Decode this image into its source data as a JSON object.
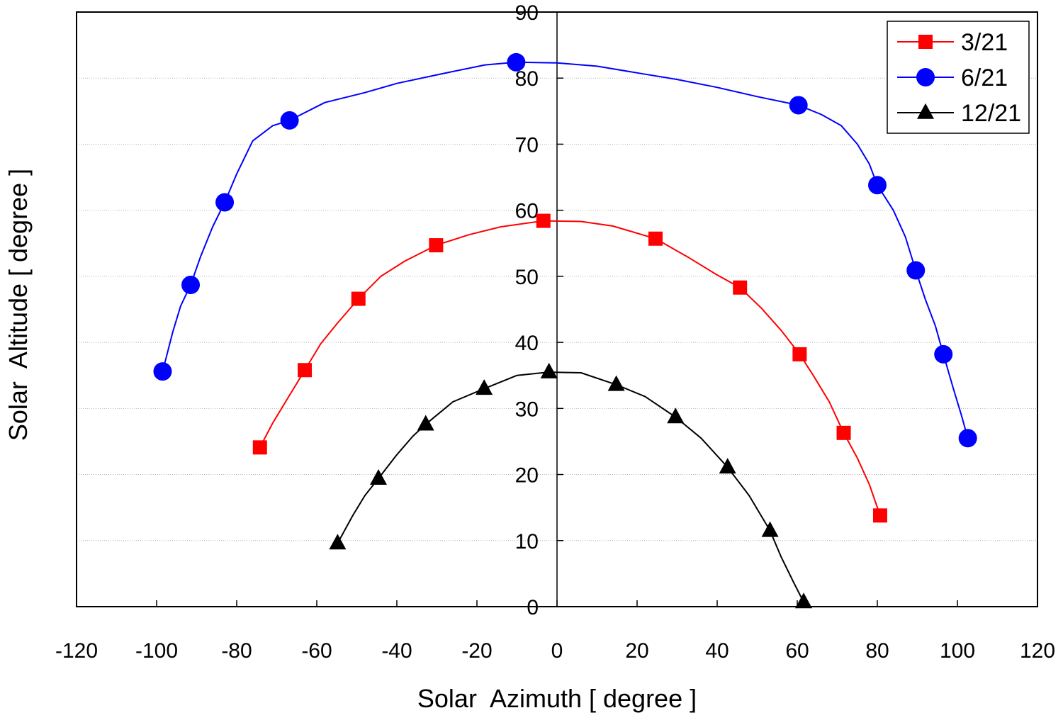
{
  "chart_data": {
    "type": "line",
    "xlabel": "Solar  Azimuth [ degree ]",
    "ylabel": "Solar  Altitude [ degree ]",
    "xlim": [
      -120,
      120
    ],
    "ylim": [
      0,
      90
    ],
    "x_ticks": [
      -120,
      -100,
      -80,
      -60,
      -40,
      -20,
      0,
      20,
      40,
      60,
      80,
      100,
      120
    ],
    "y_ticks": [
      0,
      10,
      20,
      30,
      40,
      50,
      60,
      70,
      80,
      90
    ],
    "x_tick_labels": [
      "-120",
      "-100",
      "-80",
      "-60",
      "-40",
      "-20",
      "0",
      "20",
      "40",
      "60",
      "80",
      "100",
      "120"
    ],
    "y_tick_labels": [
      "0",
      "10",
      "20",
      "30",
      "40",
      "50",
      "60",
      "70",
      "80",
      "90"
    ],
    "grid": {
      "horizontal": true,
      "vertical": false
    },
    "legend_position": "top-right",
    "series": [
      {
        "name": "3/21",
        "color": "#ff0000",
        "marker": "square",
        "markers": [
          {
            "x": -74.2,
            "y": 24.1
          },
          {
            "x": -63.0,
            "y": 35.8
          },
          {
            "x": -49.6,
            "y": 46.6
          },
          {
            "x": -30.2,
            "y": 54.7
          },
          {
            "x": -3.4,
            "y": 58.4
          },
          {
            "x": 24.6,
            "y": 55.7
          },
          {
            "x": 45.7,
            "y": 48.3
          },
          {
            "x": 60.6,
            "y": 38.2
          },
          {
            "x": 71.6,
            "y": 26.3
          },
          {
            "x": 80.7,
            "y": 13.8
          }
        ],
        "curve": [
          [
            -74.2,
            24.1
          ],
          [
            -71,
            27.8
          ],
          [
            -67,
            31.8
          ],
          [
            -63.0,
            35.8
          ],
          [
            -59,
            39.8
          ],
          [
            -55,
            42.8
          ],
          [
            -49.6,
            46.6
          ],
          [
            -44,
            50.0
          ],
          [
            -38,
            52.3
          ],
          [
            -30.2,
            54.7
          ],
          [
            -22,
            56.3
          ],
          [
            -14,
            57.5
          ],
          [
            -3.4,
            58.4
          ],
          [
            6,
            58.3
          ],
          [
            14,
            57.6
          ],
          [
            24.6,
            55.7
          ],
          [
            33,
            52.8
          ],
          [
            40,
            50.2
          ],
          [
            45.7,
            48.3
          ],
          [
            51,
            45.2
          ],
          [
            56,
            41.8
          ],
          [
            60.6,
            38.2
          ],
          [
            64,
            35.0
          ],
          [
            68,
            31.0
          ],
          [
            71.6,
            26.3
          ],
          [
            75,
            22.5
          ],
          [
            78,
            18.5
          ],
          [
            80.7,
            13.8
          ]
        ]
      },
      {
        "name": "6/21",
        "color": "#0000ff",
        "marker": "circle",
        "markers": [
          {
            "x": -98.5,
            "y": 35.6
          },
          {
            "x": -91.5,
            "y": 48.7
          },
          {
            "x": -83.0,
            "y": 61.2
          },
          {
            "x": -66.8,
            "y": 73.6
          },
          {
            "x": -10.2,
            "y": 82.4
          },
          {
            "x": 60.3,
            "y": 75.9
          },
          {
            "x": 80.0,
            "y": 63.8
          },
          {
            "x": 89.6,
            "y": 50.9
          },
          {
            "x": 96.5,
            "y": 38.2
          },
          {
            "x": 102.6,
            "y": 25.5
          }
        ],
        "curve": [
          [
            -98.5,
            35.6
          ],
          [
            -96,
            41.5
          ],
          [
            -94,
            45.5
          ],
          [
            -91.5,
            48.7
          ],
          [
            -89,
            53.0
          ],
          [
            -86,
            57.5
          ],
          [
            -83.0,
            61.2
          ],
          [
            -80,
            65.5
          ],
          [
            -76,
            70.5
          ],
          [
            -71,
            72.8
          ],
          [
            -66.8,
            73.6
          ],
          [
            -58,
            76.3
          ],
          [
            -48,
            77.8
          ],
          [
            -40,
            79.2
          ],
          [
            -30,
            80.5
          ],
          [
            -18,
            82.0
          ],
          [
            -10.2,
            82.4
          ],
          [
            0,
            82.3
          ],
          [
            10,
            81.8
          ],
          [
            20,
            80.8
          ],
          [
            30,
            79.8
          ],
          [
            40,
            78.6
          ],
          [
            50,
            77.2
          ],
          [
            60.3,
            75.9
          ],
          [
            66,
            74.5
          ],
          [
            71,
            72.8
          ],
          [
            75,
            70.0
          ],
          [
            78,
            67.0
          ],
          [
            80.0,
            63.8
          ],
          [
            84,
            60.0
          ],
          [
            87,
            56.0
          ],
          [
            89.6,
            50.9
          ],
          [
            92,
            46.5
          ],
          [
            94.5,
            42.5
          ],
          [
            96.5,
            38.2
          ],
          [
            99,
            33.0
          ],
          [
            101,
            29.0
          ],
          [
            102.6,
            25.5
          ]
        ]
      },
      {
        "name": "12/21",
        "color": "#000000",
        "marker": "triangle",
        "markers": [
          {
            "x": -54.8,
            "y": 9.6
          },
          {
            "x": -44.6,
            "y": 19.4
          },
          {
            "x": -32.8,
            "y": 27.6
          },
          {
            "x": -18.2,
            "y": 33.0
          },
          {
            "x": -2.0,
            "y": 35.5
          },
          {
            "x": 14.8,
            "y": 33.6
          },
          {
            "x": 29.6,
            "y": 28.7
          },
          {
            "x": 42.6,
            "y": 21.1
          },
          {
            "x": 53.2,
            "y": 11.5
          },
          {
            "x": 61.6,
            "y": 0.7
          }
        ],
        "curve": [
          [
            -54.8,
            9.6
          ],
          [
            -51,
            13.8
          ],
          [
            -48,
            16.8
          ],
          [
            -44.6,
            19.4
          ],
          [
            -40,
            23.0
          ],
          [
            -36,
            25.8
          ],
          [
            -32.8,
            27.6
          ],
          [
            -26,
            31.0
          ],
          [
            -18.2,
            33.0
          ],
          [
            -10,
            35.0
          ],
          [
            -2.0,
            35.5
          ],
          [
            6,
            35.4
          ],
          [
            14.8,
            33.6
          ],
          [
            22,
            31.8
          ],
          [
            29.6,
            28.7
          ],
          [
            36,
            25.5
          ],
          [
            42.6,
            21.1
          ],
          [
            48,
            16.8
          ],
          [
            53.2,
            11.5
          ],
          [
            56,
            7.5
          ],
          [
            59,
            3.8
          ],
          [
            61.6,
            0.7
          ]
        ]
      }
    ]
  }
}
